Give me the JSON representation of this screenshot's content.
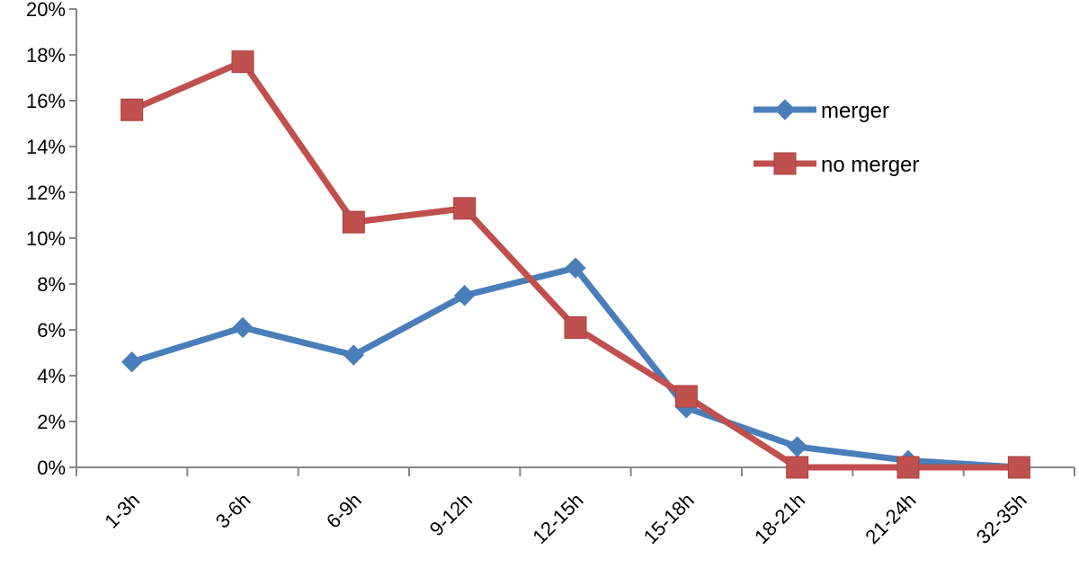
{
  "chart_data": {
    "type": "line",
    "title": "",
    "xlabel": "",
    "ylabel": "",
    "categories": [
      "1-3h",
      "3-6h",
      "6-9h",
      "9-12h",
      "12-15h",
      "15-18h",
      "18-21h",
      "21-24h",
      "32-35h"
    ],
    "y_ticks": [
      "0%",
      "2%",
      "4%",
      "6%",
      "8%",
      "10%",
      "12%",
      "14%",
      "16%",
      "18%",
      "20%"
    ],
    "ylim": [
      0,
      20
    ],
    "grid": false,
    "legend_position": "top-right",
    "series": [
      {
        "name": "merger",
        "color": "#4A7EBB",
        "marker": "diamond",
        "values": [
          4.6,
          6.1,
          4.9,
          7.5,
          8.7,
          2.6,
          0.9,
          0.3,
          0.0
        ]
      },
      {
        "name": "no merger",
        "color": "#C0504D",
        "marker": "square",
        "values": [
          15.6,
          17.7,
          10.7,
          11.3,
          6.1,
          3.1,
          0.0,
          0.0,
          0.0
        ]
      }
    ]
  }
}
